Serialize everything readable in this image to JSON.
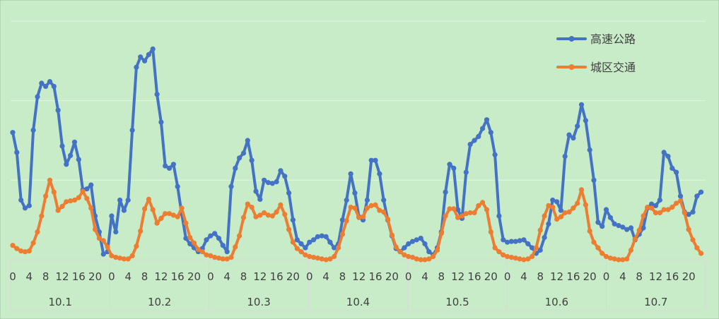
{
  "chart_data": {
    "type": "line",
    "title": "",
    "xlabel": "",
    "ylabel": "",
    "ylim": [
      0,
      30
    ],
    "grid": true,
    "legend_position": "top-right",
    "days": [
      "10.1",
      "10.2",
      "10.3",
      "10.4",
      "10.5",
      "10.6",
      "10.7"
    ],
    "hours_per_day": 24,
    "hour_ticks": [
      "0",
      "4",
      "8",
      "12",
      "16",
      "20"
    ],
    "hour_tick_values": [
      0,
      4,
      8,
      12,
      16,
      20
    ],
    "series": [
      {
        "name": "高速公路",
        "color": "#4472c4",
        "values": [
          16,
          13.5,
          7.5,
          6.5,
          6.8,
          16.3,
          20.5,
          22.2,
          21.8,
          22.4,
          21.8,
          18.8,
          14.3,
          12,
          13.1,
          14.8,
          12.6,
          8.8,
          8.9,
          9.4,
          5.5,
          3.5,
          0.7,
          1,
          5.5,
          3.5,
          7.5,
          6.2,
          7.5,
          16.3,
          24.2,
          25.5,
          25,
          25.8,
          26.5,
          20.8,
          17.3,
          11.8,
          11.5,
          12,
          9.2,
          5.8,
          2.7,
          2,
          1.5,
          1,
          1.4,
          2.5,
          3,
          3.3,
          2.7,
          1.8,
          1,
          9.2,
          11.5,
          12.8,
          13.4,
          15,
          12.5,
          8.6,
          7.6,
          10,
          9.7,
          9.6,
          9.8,
          11.2,
          10.5,
          8.4,
          5,
          2.5,
          2,
          1.5,
          2.2,
          2.5,
          2.9,
          3,
          2.9,
          2.2,
          1.5,
          2,
          5,
          7.5,
          10.8,
          8.4,
          5.4,
          5,
          7.5,
          12.5,
          12.5,
          10.8,
          7.5,
          5,
          3,
          1.4,
          1,
          1.5,
          2,
          2.3,
          2.5,
          2.7,
          2,
          1,
          0.6,
          1.5,
          3.5,
          8.5,
          12,
          11.5,
          6.3,
          5.2,
          11,
          14.5,
          15,
          15.5,
          16.5,
          17.6,
          16,
          13.2,
          5.5,
          2.5,
          2.2,
          2.3,
          2.3,
          2.4,
          2.5,
          2,
          1.5,
          0.8,
          1.2,
          2.8,
          4.5,
          7.5,
          7.3,
          6.2,
          13,
          15.7,
          15.3,
          16.8,
          19.5,
          17.5,
          13.8,
          10,
          4.7,
          4.2,
          6.3,
          5.3,
          4.5,
          4.3,
          4.1,
          3.8,
          4,
          2.5,
          3.2,
          4,
          6.5,
          7,
          6.8,
          7.5,
          13.5,
          13,
          11.5,
          11,
          8,
          6,
          5.7,
          6,
          8,
          8.5
        ]
      },
      {
        "name": "城区交通",
        "color": "#ed7d31",
        "values": [
          1.8,
          1.4,
          1.1,
          1,
          1.1,
          2.1,
          3.5,
          5.5,
          8,
          10,
          8.5,
          6.2,
          6.7,
          7.3,
          7.4,
          7.5,
          7.8,
          8.6,
          7.7,
          6.5,
          3.8,
          2.7,
          2.4,
          1.6,
          0.5,
          0.3,
          0.2,
          0.1,
          0.1,
          0.5,
          1.7,
          3.6,
          6.4,
          7.6,
          6.3,
          4.6,
          5.2,
          5.8,
          5.8,
          5.6,
          5.4,
          6.5,
          4.6,
          2.8,
          2.1,
          1.3,
          1,
          0.6,
          0.5,
          0.3,
          0.2,
          0.1,
          0.1,
          0.3,
          1.6,
          3,
          5.3,
          7,
          6.6,
          5.4,
          5.6,
          5.9,
          5.6,
          5.5,
          6,
          6.9,
          5.7,
          3.8,
          2.2,
          1.4,
          1,
          0.6,
          0.4,
          0.3,
          0.2,
          0.1,
          0,
          0.1,
          0.4,
          1.5,
          3.2,
          4.9,
          6.6,
          6.5,
          5.3,
          5.4,
          6.5,
          6.8,
          6.9,
          6.2,
          6,
          5.1,
          3.1,
          1.6,
          1,
          0.6,
          0.4,
          0.3,
          0.1,
          0,
          0,
          0.1,
          0.4,
          1.2,
          3.3,
          5.5,
          6.4,
          6.4,
          5.3,
          5.5,
          5.8,
          5.9,
          5.9,
          6.8,
          7.2,
          6.3,
          3.5,
          1.5,
          1,
          0.6,
          0.4,
          0.3,
          0.2,
          0.1,
          0,
          0.1,
          0.4,
          1.5,
          3.7,
          5.5,
          6.8,
          6.6,
          5.1,
          5.4,
          5.9,
          6,
          6.5,
          7.1,
          8.8,
          6.9,
          3.6,
          2.2,
          1.5,
          0.8,
          0.4,
          0.2,
          0.1,
          0,
          0,
          0.1,
          1.2,
          2.6,
          3.7,
          5.5,
          6.6,
          6.5,
          5.9,
          5.9,
          6.3,
          6.3,
          6.6,
          7.1,
          7.4,
          5.9,
          3.8,
          2.5,
          1.5,
          0.8
        ]
      }
    ]
  }
}
